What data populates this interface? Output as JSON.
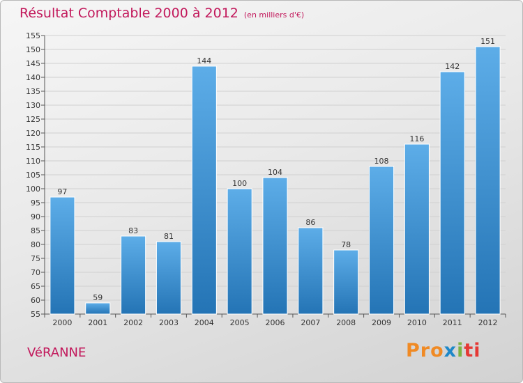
{
  "chart_data": {
    "type": "bar",
    "title": "Résultat Comptable 2000 à 2012",
    "subtitle": "(en milliers d'€)",
    "categories": [
      "2000",
      "2001",
      "2002",
      "2003",
      "2004",
      "2005",
      "2006",
      "2007",
      "2008",
      "2009",
      "2010",
      "2011",
      "2012"
    ],
    "values": [
      97,
      59,
      83,
      81,
      144,
      100,
      104,
      86,
      78,
      108,
      116,
      142,
      151
    ],
    "ylim": [
      55,
      155
    ],
    "yticks": [
      55,
      60,
      65,
      70,
      75,
      80,
      85,
      90,
      95,
      100,
      105,
      110,
      115,
      120,
      125,
      130,
      135,
      140,
      145,
      150,
      155
    ],
    "xlabel": "",
    "ylabel": "",
    "grid": true,
    "bar_color": "#3a8fd4"
  },
  "footer": {
    "commune": "VéRANNE",
    "logo": [
      "Pro",
      "x",
      "i",
      "ti"
    ]
  }
}
